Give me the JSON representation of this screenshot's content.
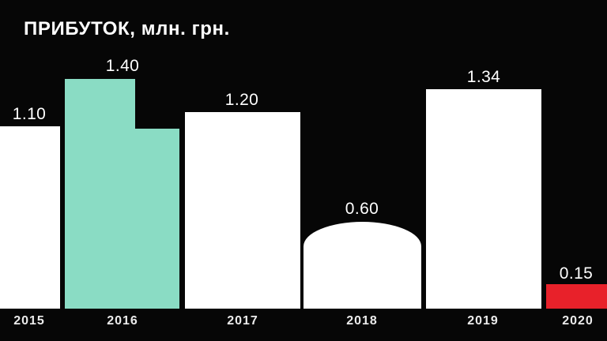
{
  "title": "ПРИБУТОК, млн. грн.",
  "colors": {
    "background": "#060606",
    "bar_default": "#ffffff",
    "bar_highlight": "#8adcc4",
    "bar_negative": "#e8212a",
    "value_text": "#ffffff",
    "year_text": "#ebebeb"
  },
  "chart_data": {
    "type": "bar",
    "title": "ПРИБУТОК, млн. грн.",
    "categories": [
      "2015",
      "2016",
      "2017",
      "2018",
      "2019",
      "2020"
    ],
    "values": [
      1.1,
      1.4,
      1.2,
      0.6,
      1.34,
      0.15
    ],
    "value_labels": [
      "1.10",
      "1.40",
      "1.20",
      "0.60",
      "1.34",
      "0.15"
    ],
    "bar_colors": [
      "#ffffff",
      "#8adcc4",
      "#ffffff",
      "#ffffff",
      "#ffffff",
      "#e8212a"
    ],
    "xlabel": "",
    "ylabel": "млн. грн.",
    "ylim": [
      0,
      1.5
    ],
    "grid": false,
    "legend": "none",
    "shape_notes": {
      "bar_2015": "clipped by left edge of image",
      "bar_2016": "highlighted teal bar with stepped top: left part reaches 1.40, right part drops to ~1.10",
      "bar_2018": "dome-shaped rounded top",
      "bar_2020": "red bar clipped by right edge of image"
    }
  }
}
